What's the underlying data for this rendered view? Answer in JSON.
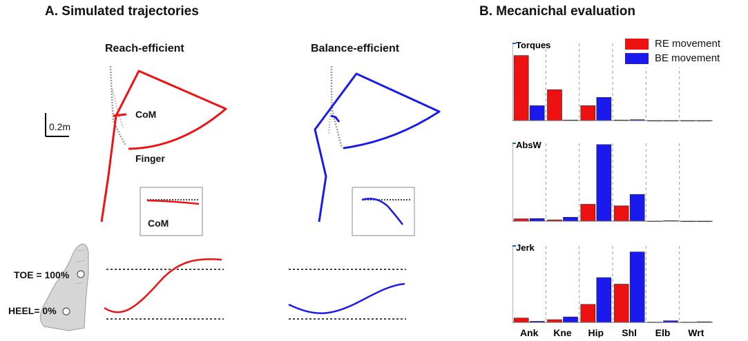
{
  "panel_a": {
    "title": "A. Simulated trajectories",
    "reach_title": "Reach-efficient",
    "balance_title": "Balance-efficient",
    "com_label": "CoM",
    "finger_label": "Finger",
    "scale_label": "0.2m",
    "inset_com_label": "CoM",
    "toe_label": "TOE = 100%",
    "heel_label": "HEEL= 0%",
    "colors": {
      "reach": "#ee1111",
      "balance": "#1a1aee",
      "skeleton": "#888888"
    }
  },
  "panel_b": {
    "title": "B. Mecanichal evaluation",
    "legend": [
      {
        "label": "RE movement",
        "color": "#ee1111"
      },
      {
        "label": "BE movement",
        "color": "#1a1aee"
      }
    ]
  },
  "chart_data": [
    {
      "type": "bar",
      "title": "Torques",
      "categories": [
        "Ank",
        "Kne",
        "Hip",
        "Shl",
        "Elb",
        "Wrt"
      ],
      "ylim": [
        0,
        700000.0
      ],
      "ytick_labels": [
        "0",
        "7e5"
      ],
      "series": [
        {
          "name": "RE movement",
          "values": [
            590000,
            280000,
            135000,
            5000,
            0,
            0
          ]
        },
        {
          "name": "BE movement",
          "values": [
            135000,
            5000,
            210000,
            8000,
            0,
            0
          ]
        }
      ]
    },
    {
      "type": "bar",
      "title": "AbsW",
      "categories": [
        "Ank",
        "Kne",
        "Hip",
        "Shl",
        "Elb",
        "Wrt"
      ],
      "ylim": [
        0,
        3000
      ],
      "ytick_labels": [
        "0",
        "3e3"
      ],
      "series": [
        {
          "name": "RE movement",
          "values": [
            90,
            50,
            650,
            590,
            5,
            0
          ]
        },
        {
          "name": "BE movement",
          "values": [
            100,
            150,
            2950,
            1030,
            20,
            0
          ]
        }
      ]
    },
    {
      "type": "bar",
      "title": "Jerk",
      "categories": [
        "Ank",
        "Kne",
        "Hip",
        "Shl",
        "Elb",
        "Wrt"
      ],
      "ylim": [
        0,
        700000.0
      ],
      "ytick_labels": [
        "0",
        "7e5"
      ],
      "series": [
        {
          "name": "RE movement",
          "values": [
            40000,
            25000,
            165000,
            350000,
            3000,
            3000
          ]
        },
        {
          "name": "BE movement",
          "values": [
            10000,
            50000,
            410000,
            645000,
            15000,
            6000
          ]
        }
      ]
    }
  ]
}
